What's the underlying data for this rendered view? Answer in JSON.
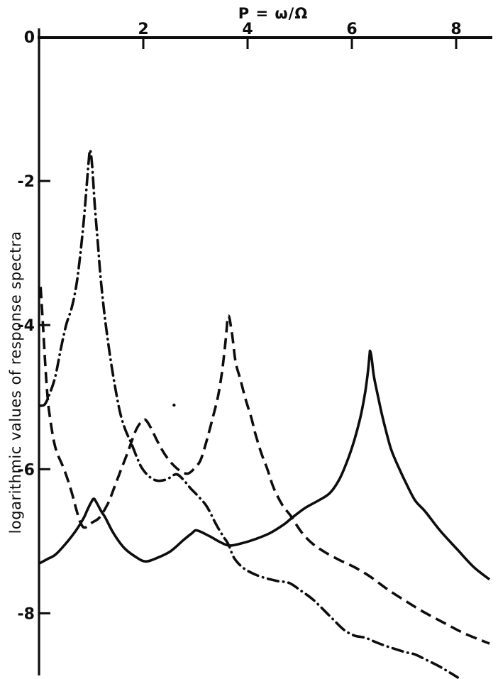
{
  "chart_data": {
    "type": "line",
    "title": "P = ω/Ω",
    "ylabel": "logarithmic values of response spectra",
    "x_axis": {
      "min": 0,
      "max": 8.65,
      "position": "top",
      "ticks": [
        2,
        4,
        6,
        8
      ],
      "tick_labels": [
        "2",
        "4",
        "6",
        "8"
      ]
    },
    "y_axis": {
      "min": -8.9,
      "max": 0,
      "ticks": [
        0,
        -2,
        -4,
        -6,
        -8
      ],
      "tick_labels": [
        "0",
        "-2",
        "-4",
        "-6",
        "-8"
      ]
    },
    "grid": false,
    "legend": "none",
    "series": [
      {
        "name": "solid",
        "line_style": "solid",
        "points": [
          [
            0,
            -7.31
          ],
          [
            0.18,
            -7.24
          ],
          [
            0.34,
            -7.17
          ],
          [
            0.64,
            -6.92
          ],
          [
            0.84,
            -6.7
          ],
          [
            0.93,
            -6.56
          ],
          [
            1.0,
            -6.46
          ],
          [
            1.05,
            -6.41
          ],
          [
            1.1,
            -6.46
          ],
          [
            1.19,
            -6.58
          ],
          [
            1.27,
            -6.67
          ],
          [
            1.43,
            -6.89
          ],
          [
            1.63,
            -7.09
          ],
          [
            1.84,
            -7.21
          ],
          [
            2.04,
            -7.28
          ],
          [
            2.27,
            -7.23
          ],
          [
            2.52,
            -7.14
          ],
          [
            2.76,
            -6.99
          ],
          [
            2.93,
            -6.89
          ],
          [
            3.03,
            -6.85
          ],
          [
            3.27,
            -6.93
          ],
          [
            3.47,
            -7.01
          ],
          [
            3.65,
            -7.06
          ],
          [
            3.88,
            -7.03
          ],
          [
            4.15,
            -6.97
          ],
          [
            4.42,
            -6.89
          ],
          [
            4.69,
            -6.77
          ],
          [
            4.86,
            -6.67
          ],
          [
            5.1,
            -6.54
          ],
          [
            5.37,
            -6.43
          ],
          [
            5.58,
            -6.33
          ],
          [
            5.76,
            -6.14
          ],
          [
            5.92,
            -5.87
          ],
          [
            6.05,
            -5.59
          ],
          [
            6.16,
            -5.29
          ],
          [
            6.24,
            -5.0
          ],
          [
            6.3,
            -4.7
          ],
          [
            6.34,
            -4.41
          ],
          [
            6.35,
            -4.36
          ],
          [
            6.38,
            -4.46
          ],
          [
            6.42,
            -4.7
          ],
          [
            6.49,
            -4.95
          ],
          [
            6.57,
            -5.22
          ],
          [
            6.67,
            -5.51
          ],
          [
            6.76,
            -5.74
          ],
          [
            6.9,
            -5.98
          ],
          [
            7.03,
            -6.18
          ],
          [
            7.21,
            -6.43
          ],
          [
            7.41,
            -6.59
          ],
          [
            7.69,
            -6.85
          ],
          [
            8.03,
            -7.12
          ],
          [
            8.34,
            -7.36
          ],
          [
            8.64,
            -7.53
          ]
        ]
      },
      {
        "name": "dashed",
        "line_style": "dashed",
        "points": [
          [
            0.03,
            -3.47
          ],
          [
            0.07,
            -3.92
          ],
          [
            0.1,
            -4.31
          ],
          [
            0.15,
            -4.87
          ],
          [
            0.2,
            -5.23
          ],
          [
            0.31,
            -5.69
          ],
          [
            0.48,
            -6.0
          ],
          [
            0.61,
            -6.28
          ],
          [
            0.72,
            -6.57
          ],
          [
            0.8,
            -6.75
          ],
          [
            0.88,
            -6.81
          ],
          [
            1.02,
            -6.74
          ],
          [
            1.16,
            -6.67
          ],
          [
            1.32,
            -6.48
          ],
          [
            1.43,
            -6.28
          ],
          [
            1.56,
            -6.03
          ],
          [
            1.7,
            -5.77
          ],
          [
            1.84,
            -5.49
          ],
          [
            1.93,
            -5.37
          ],
          [
            2.03,
            -5.31
          ],
          [
            2.14,
            -5.42
          ],
          [
            2.27,
            -5.61
          ],
          [
            2.41,
            -5.79
          ],
          [
            2.56,
            -5.93
          ],
          [
            2.72,
            -6.03
          ],
          [
            2.86,
            -6.06
          ],
          [
            2.99,
            -5.98
          ],
          [
            3.1,
            -5.87
          ],
          [
            3.22,
            -5.59
          ],
          [
            3.33,
            -5.29
          ],
          [
            3.43,
            -5.0
          ],
          [
            3.51,
            -4.65
          ],
          [
            3.58,
            -4.21
          ],
          [
            3.63,
            -3.87
          ],
          [
            3.7,
            -4.11
          ],
          [
            3.77,
            -4.51
          ],
          [
            3.86,
            -4.75
          ],
          [
            3.97,
            -5.05
          ],
          [
            4.07,
            -5.28
          ],
          [
            4.15,
            -5.51
          ],
          [
            4.26,
            -5.77
          ],
          [
            4.38,
            -6.0
          ],
          [
            4.5,
            -6.26
          ],
          [
            4.67,
            -6.5
          ],
          [
            4.83,
            -6.65
          ],
          [
            5.03,
            -6.87
          ],
          [
            5.24,
            -7.03
          ],
          [
            5.48,
            -7.15
          ],
          [
            5.76,
            -7.26
          ],
          [
            6.05,
            -7.36
          ],
          [
            6.35,
            -7.49
          ],
          [
            6.67,
            -7.66
          ],
          [
            7.01,
            -7.82
          ],
          [
            7.35,
            -7.97
          ],
          [
            7.76,
            -8.13
          ],
          [
            8.16,
            -8.28
          ],
          [
            8.64,
            -8.42
          ]
        ]
      },
      {
        "name": "dash-dot",
        "line_style": "dash-dot",
        "points": [
          [
            0.01,
            -5.12
          ],
          [
            0.11,
            -5.1
          ],
          [
            0.2,
            -4.96
          ],
          [
            0.31,
            -4.72
          ],
          [
            0.41,
            -4.36
          ],
          [
            0.52,
            -4.0
          ],
          [
            0.63,
            -3.75
          ],
          [
            0.72,
            -3.43
          ],
          [
            0.79,
            -3.03
          ],
          [
            0.86,
            -2.54
          ],
          [
            0.91,
            -2.1
          ],
          [
            0.95,
            -1.75
          ],
          [
            0.98,
            -1.57
          ],
          [
            1.02,
            -1.8
          ],
          [
            1.07,
            -2.34
          ],
          [
            1.13,
            -2.88
          ],
          [
            1.18,
            -3.33
          ],
          [
            1.25,
            -3.82
          ],
          [
            1.32,
            -4.21
          ],
          [
            1.39,
            -4.56
          ],
          [
            1.47,
            -4.9
          ],
          [
            1.56,
            -5.23
          ],
          [
            1.66,
            -5.46
          ],
          [
            1.77,
            -5.64
          ],
          [
            1.88,
            -5.84
          ],
          [
            1.97,
            -5.98
          ],
          [
            2.11,
            -6.1
          ],
          [
            2.27,
            -6.16
          ],
          [
            2.45,
            -6.14
          ],
          [
            2.63,
            -6.07
          ],
          [
            2.76,
            -6.14
          ],
          [
            2.9,
            -6.26
          ],
          [
            3.06,
            -6.38
          ],
          [
            3.22,
            -6.52
          ],
          [
            3.4,
            -6.77
          ],
          [
            3.54,
            -6.94
          ],
          [
            3.63,
            -7.04
          ],
          [
            3.74,
            -7.23
          ],
          [
            3.9,
            -7.36
          ],
          [
            4.08,
            -7.44
          ],
          [
            4.29,
            -7.5
          ],
          [
            4.56,
            -7.55
          ],
          [
            4.8,
            -7.58
          ],
          [
            5.03,
            -7.69
          ],
          [
            5.24,
            -7.8
          ],
          [
            5.4,
            -7.91
          ],
          [
            5.62,
            -8.07
          ],
          [
            5.85,
            -8.23
          ],
          [
            6.05,
            -8.31
          ],
          [
            6.26,
            -8.34
          ],
          [
            6.49,
            -8.41
          ],
          [
            6.76,
            -8.48
          ],
          [
            7.03,
            -8.54
          ],
          [
            7.21,
            -8.57
          ],
          [
            7.41,
            -8.64
          ],
          [
            7.66,
            -8.73
          ],
          [
            7.85,
            -8.81
          ],
          [
            8.03,
            -8.89
          ]
        ]
      }
    ],
    "stray_mark": {
      "P": 2.59,
      "value": -5.11
    },
    "ink_color": "#0d0d0d",
    "background_color": "#ffffff"
  }
}
